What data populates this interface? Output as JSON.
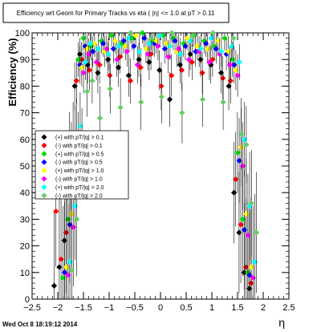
{
  "chart_data": {
    "type": "scatter",
    "title": "Efficiency wrt Geom for Primary Tracks vs eta ( |η| <= 1.0 at pT > 0.11",
    "xlabel": "η",
    "ylabel": "Efficiency (%)",
    "xlim": [
      -2.5,
      2.5
    ],
    "ylim": [
      0,
      100
    ],
    "xticks": [
      "−2.5",
      "−2",
      "−1.5",
      "−1",
      "−0.5",
      "0",
      "0.5",
      "1",
      "1.5",
      "2",
      "2.5"
    ],
    "yticks": [
      "0",
      "10",
      "20",
      "30",
      "40",
      "50",
      "60",
      "70",
      "80",
      "90",
      "100"
    ],
    "grid": false,
    "legend_position": "center-left",
    "series": [
      {
        "name": "(+) with pT/|q| > 0.1",
        "color": "#000000",
        "x": [
          -1.95,
          -1.85,
          -1.75,
          -1.65,
          -1.55,
          -1.45,
          -1.3,
          -1.1,
          -0.9,
          -0.7,
          -0.5,
          -0.3,
          -0.1,
          0.1,
          0.3,
          0.5,
          0.7,
          0.9,
          1.1,
          1.3,
          1.45,
          1.55,
          1.65,
          1.75,
          1.85
        ],
        "y": [
          5,
          12,
          22,
          55,
          80,
          92,
          88,
          85,
          90,
          87,
          84,
          90,
          89,
          86,
          75,
          88,
          92,
          90,
          88,
          85,
          80,
          40,
          25,
          10,
          4
        ]
      },
      {
        "name": "(-) with pT/|q| > 0.1",
        "color": "#ff0000",
        "x": [
          -1.95,
          -1.85,
          -1.75,
          -1.65,
          -1.55,
          -1.45,
          -1.3,
          -1.1,
          -0.9,
          -0.7,
          -0.5,
          -0.3,
          -0.1,
          0.1,
          0.3,
          0.5,
          0.7,
          0.9,
          1.1,
          1.3,
          1.45,
          1.55,
          1.65,
          1.75,
          1.85
        ],
        "y": [
          33,
          15,
          25,
          50,
          82,
          90,
          86,
          88,
          84,
          91,
          82,
          87,
          92,
          80,
          84,
          86,
          89,
          85,
          90,
          83,
          82,
          45,
          28,
          12,
          6
        ]
      },
      {
        "name": "(+) with pT/|q| > 0.5",
        "color": "#00dd00",
        "x": [
          -1.85,
          -1.75,
          -1.65,
          -1.55,
          -1.45,
          -1.3,
          -1.1,
          -0.9,
          -0.7,
          -0.5,
          -0.3,
          -0.1,
          0.1,
          0.3,
          0.5,
          0.7,
          0.9,
          1.1,
          1.3,
          1.45,
          1.55,
          1.65,
          1.75
        ],
        "y": [
          8,
          30,
          60,
          90,
          98,
          95,
          97,
          99,
          96,
          98,
          100,
          97,
          99,
          98,
          96,
          99,
          97,
          95,
          98,
          90,
          55,
          30,
          10
        ]
      },
      {
        "name": "(-) with pT/|q| > 0.5",
        "color": "#0000ff",
        "x": [
          -1.85,
          -1.75,
          -1.65,
          -1.55,
          -1.45,
          -1.3,
          -1.1,
          -0.9,
          -0.7,
          -0.5,
          -0.3,
          -0.1,
          0.1,
          0.3,
          0.5,
          0.7,
          0.9,
          1.1,
          1.3,
          1.45,
          1.55,
          1.65,
          1.75
        ],
        "y": [
          10,
          28,
          58,
          88,
          95,
          93,
          96,
          94,
          97,
          95,
          98,
          96,
          94,
          97,
          95,
          93,
          96,
          94,
          92,
          88,
          52,
          26,
          9
        ]
      },
      {
        "name": "(+) with pT/|q| > 1.0",
        "color": "#ffff00",
        "x": [
          -1.85,
          -1.75,
          -1.65,
          -1.55,
          -1.45,
          -1.3,
          -1.1,
          -0.9,
          -0.7,
          -0.5,
          -0.3,
          -0.1,
          0.1,
          0.3,
          0.5,
          0.7,
          0.9,
          1.1,
          1.3,
          1.45,
          1.55,
          1.65,
          1.75
        ],
        "y": [
          12,
          32,
          62,
          87,
          94,
          96,
          93,
          97,
          95,
          99,
          94,
          97,
          96,
          93,
          98,
          95,
          94,
          97,
          93,
          86,
          57,
          32,
          12
        ]
      },
      {
        "name": "(-) with pT/|q| > 1.0",
        "color": "#ff00ff",
        "x": [
          -1.85,
          -1.75,
          -1.65,
          -1.55,
          -1.45,
          -1.3,
          -1.1,
          -0.9,
          -0.7,
          -0.5,
          -0.3,
          -0.1,
          0.1,
          0.3,
          0.5,
          0.7,
          0.9,
          1.1,
          1.3,
          1.45,
          1.55,
          1.65,
          1.75
        ],
        "y": [
          9,
          27,
          55,
          85,
          92,
          89,
          94,
          90,
          93,
          88,
          92,
          95,
          91,
          94,
          90,
          93,
          89,
          92,
          88,
          84,
          50,
          24,
          8
        ]
      },
      {
        "name": "(+) with pT/|q| > 2.0",
        "color": "#00ffff",
        "x": [
          -1.85,
          -1.75,
          -1.65,
          -1.55,
          -1.45,
          -1.3,
          -1.1,
          -0.9,
          -0.7,
          -0.5,
          -0.3,
          -0.1,
          0.1,
          0.3,
          0.5,
          0.7,
          0.9,
          1.1,
          1.3,
          1.45,
          1.55,
          1.65,
          1.75
        ],
        "y": [
          14,
          35,
          65,
          89,
          96,
          94,
          92,
          95,
          98,
          93,
          96,
          99,
          95,
          92,
          97,
          94,
          98,
          93,
          95,
          89,
          60,
          35,
          14
        ]
      },
      {
        "name": "(-) with pT/|q| > 2.0",
        "color": "#66cc66",
        "x": [
          -1.85,
          -1.75,
          -1.65,
          -1.55,
          -1.45,
          -1.3,
          -1.1,
          -0.9,
          -0.7,
          -0.5,
          -0.3,
          -0.1,
          0.1,
          0.3,
          0.5,
          0.7,
          0.9,
          1.1,
          1.3,
          1.45,
          1.55,
          1.65,
          1.75
        ],
        "y": [
          11,
          30,
          57,
          78,
          82,
          68,
          79,
          72,
          100,
          74,
          98,
          76,
          100,
          70,
          99,
          75,
          100,
          74,
          98,
          62,
          58,
          36,
          25
        ]
      }
    ]
  },
  "timestamp": "Wed Oct  8 18:19:12 2014"
}
